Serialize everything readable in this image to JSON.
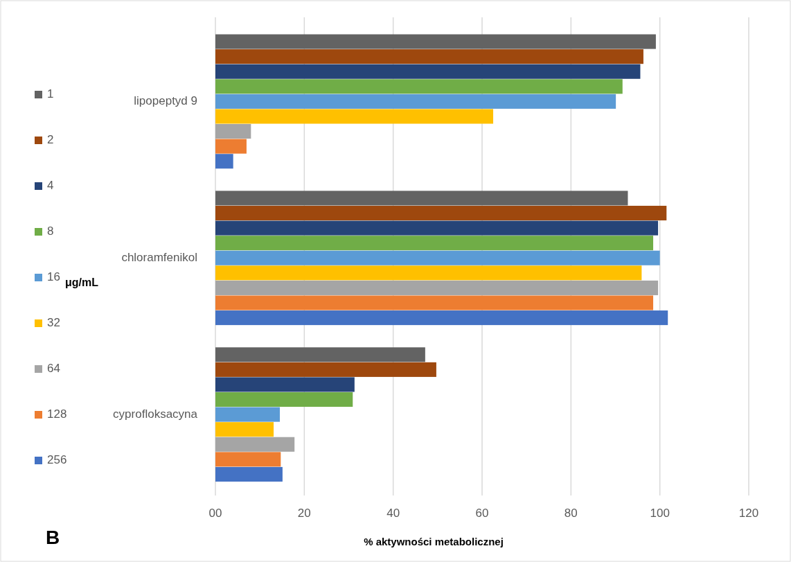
{
  "chart_data": {
    "type": "bar",
    "orientation": "horizontal",
    "categories": [
      "lipopeptyd 9",
      "chloramfenikol",
      "cyprofloksacyna"
    ],
    "series": [
      {
        "name": "1",
        "color": "#636363",
        "values": [
          99.1,
          92.8,
          47.2
        ]
      },
      {
        "name": "2",
        "color": "#9e480e",
        "values": [
          96.3,
          101.5,
          49.7
        ]
      },
      {
        "name": "4",
        "color": "#264478",
        "values": [
          95.6,
          99.6,
          31.3
        ]
      },
      {
        "name": "8",
        "color": "#70ad47",
        "values": [
          91.6,
          98.5,
          30.9
        ]
      },
      {
        "name": "16",
        "color": "#5b9bd5",
        "values": [
          90.1,
          100,
          14.5
        ]
      },
      {
        "name": "32",
        "color": "#ffc000",
        "values": [
          62.5,
          95.9,
          13.1
        ]
      },
      {
        "name": "64",
        "color": "#a5a5a5",
        "values": [
          8.0,
          99.6,
          17.8
        ]
      },
      {
        "name": "128",
        "color": "#ed7d31",
        "values": [
          7.0,
          98.5,
          14.7
        ]
      },
      {
        "name": "256",
        "color": "#4472c4",
        "values": [
          4.0,
          101.8,
          15.1
        ]
      }
    ],
    "xlim": [
      0,
      120
    ],
    "xticks": [
      {
        "value": 0,
        "label": "00"
      },
      20,
      40,
      60,
      80,
      100,
      120
    ],
    "xlabel": "% aktywności metabolicznej",
    "legend_title": "μg/mL",
    "legend": "left",
    "grid": "x",
    "annotations": [
      "B"
    ]
  }
}
